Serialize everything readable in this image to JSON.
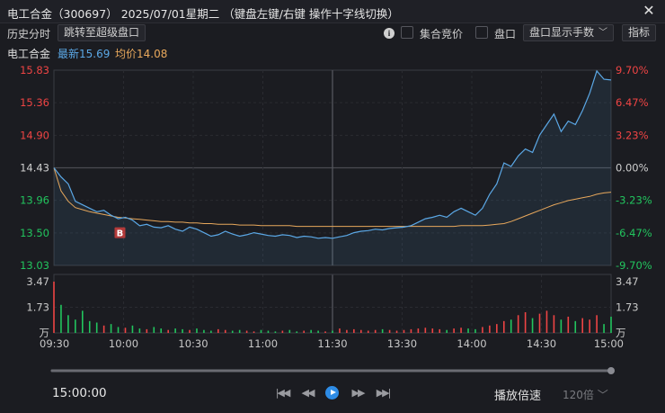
{
  "titlebar": {
    "title": "电工合金（300697）  2025/07/01星期二   （键盘左键/右键 操作十字线切换）",
    "close": "✕"
  },
  "toolbar": {
    "history_label": "历史分时",
    "jump_button": "跳转至超级盘口",
    "call_auction_label": "集合竞价",
    "order_book_label": "盘口",
    "select_value": "盘口显示手数",
    "indicator_button": "指标"
  },
  "infobar": {
    "stock_name": "电工合金",
    "latest_label": "最新15.69",
    "avg_label": "均价14.08"
  },
  "chart_data": {
    "type": "line",
    "title": "",
    "x_ticks": [
      "09:30",
      "10:00",
      "10:30",
      "11:00",
      "11:30",
      "13:30",
      "14:00",
      "14:30",
      "15:00"
    ],
    "price_ticks": [
      "15.83",
      "15.36",
      "14.90",
      "14.43",
      "13.96",
      "13.50",
      "13.03"
    ],
    "pct_ticks": [
      "9.70%",
      "6.47%",
      "3.23%",
      "0.00%",
      "-3.23%",
      "-6.47%",
      "-9.70%"
    ],
    "vol_ticks": [
      "3.47",
      "1.73",
      "万"
    ],
    "prev_close": 14.43,
    "ylim": [
      13.03,
      15.83
    ],
    "vol_ylim": [
      0,
      3.47
    ],
    "marker_label": "B",
    "series": [
      {
        "name": "最新",
        "color": "#5ba8e6",
        "values": [
          14.43,
          14.3,
          14.2,
          13.95,
          13.9,
          13.85,
          13.8,
          13.82,
          13.75,
          13.7,
          13.72,
          13.68,
          13.6,
          13.62,
          13.58,
          13.57,
          13.6,
          13.55,
          13.52,
          13.58,
          13.55,
          13.5,
          13.45,
          13.47,
          13.52,
          13.48,
          13.45,
          13.47,
          13.5,
          13.48,
          13.46,
          13.45,
          13.47,
          13.46,
          13.43,
          13.45,
          13.44,
          13.42,
          13.43,
          13.42,
          13.44,
          13.46,
          13.5,
          13.52,
          13.53,
          13.55,
          13.54,
          13.56,
          13.57,
          13.58,
          13.6,
          13.65,
          13.7,
          13.72,
          13.75,
          13.72,
          13.8,
          13.85,
          13.8,
          13.75,
          13.85,
          14.05,
          14.2,
          14.5,
          14.45,
          14.6,
          14.7,
          14.65,
          14.9,
          15.05,
          15.2,
          14.95,
          15.1,
          15.05,
          15.25,
          15.5,
          15.82,
          15.7,
          15.69
        ]
      },
      {
        "name": "均价",
        "color": "#e8a85c",
        "values": [
          14.43,
          14.1,
          13.95,
          13.86,
          13.83,
          13.8,
          13.78,
          13.76,
          13.74,
          13.72,
          13.71,
          13.7,
          13.69,
          13.68,
          13.67,
          13.66,
          13.66,
          13.65,
          13.65,
          13.64,
          13.64,
          13.63,
          13.63,
          13.62,
          13.62,
          13.62,
          13.61,
          13.61,
          13.61,
          13.6,
          13.6,
          13.6,
          13.6,
          13.6,
          13.59,
          13.59,
          13.59,
          13.59,
          13.59,
          13.59,
          13.59,
          13.59,
          13.59,
          13.59,
          13.59,
          13.59,
          13.59,
          13.59,
          13.59,
          13.59,
          13.59,
          13.59,
          13.59,
          13.59,
          13.59,
          13.59,
          13.59,
          13.6,
          13.6,
          13.6,
          13.6,
          13.61,
          13.62,
          13.63,
          13.66,
          13.7,
          13.74,
          13.78,
          13.82,
          13.86,
          13.9,
          13.93,
          13.96,
          13.98,
          14.0,
          14.02,
          14.05,
          14.07,
          14.08
        ]
      }
    ],
    "volume": [
      3.47,
      1.9,
      1.2,
      0.9,
      1.5,
      0.8,
      0.7,
      0.5,
      0.6,
      0.4,
      0.35,
      0.5,
      0.3,
      0.25,
      0.4,
      0.3,
      0.2,
      0.3,
      0.25,
      0.2,
      0.3,
      0.2,
      0.15,
      0.25,
      0.2,
      0.15,
      0.2,
      0.15,
      0.1,
      0.2,
      0.15,
      0.1,
      0.15,
      0.2,
      0.1,
      0.15,
      0.2,
      0.15,
      0.1,
      0.15,
      0.3,
      0.2,
      0.25,
      0.2,
      0.15,
      0.2,
      0.25,
      0.2,
      0.15,
      0.2,
      0.25,
      0.3,
      0.35,
      0.3,
      0.25,
      0.2,
      0.3,
      0.35,
      0.3,
      0.25,
      0.4,
      0.5,
      0.6,
      0.8,
      0.9,
      1.2,
      1.4,
      1.0,
      1.3,
      1.5,
      1.2,
      0.9,
      1.1,
      0.8,
      1.0,
      0.9,
      1.2,
      0.6,
      1.1
    ]
  },
  "playback": {
    "time": "15:00:00",
    "speed_label": "播放倍速",
    "speed_value": "120倍",
    "progress": 1.0
  }
}
